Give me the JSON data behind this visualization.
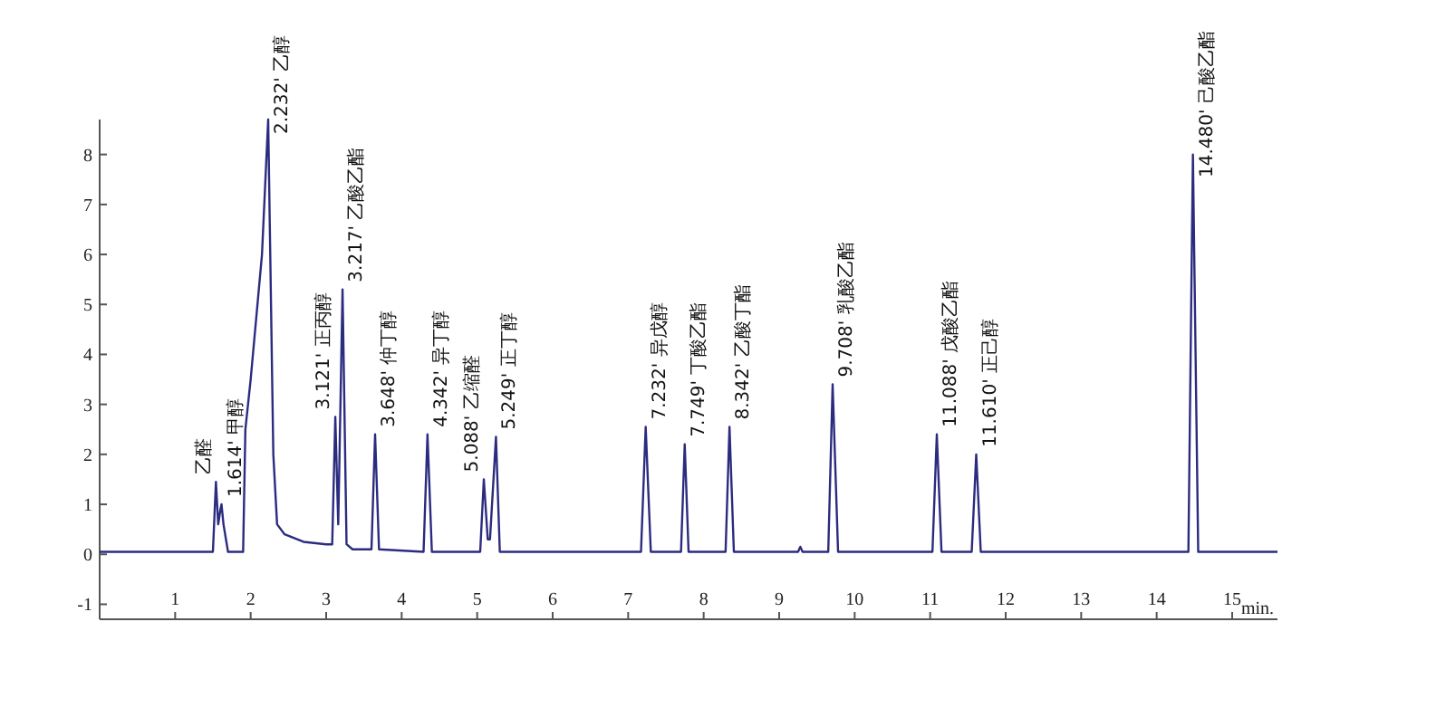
{
  "chart_data": {
    "type": "line",
    "xlabel": "min.",
    "xlim": [
      0,
      15.6
    ],
    "ylim": [
      -1.3,
      8.7
    ],
    "xticks": [
      1,
      2,
      3,
      4,
      5,
      6,
      7,
      8,
      9,
      10,
      11,
      12,
      13,
      14,
      15
    ],
    "yticks": [
      -1,
      0,
      1,
      2,
      3,
      4,
      5,
      6,
      7,
      8
    ],
    "grid": false,
    "marker": "none",
    "line_style": "solid",
    "series": [
      {
        "color": "#2b2b80",
        "x": [
          0.0,
          1.4,
          1.5,
          1.54,
          1.57,
          1.6,
          1.614,
          1.64,
          1.7,
          1.9,
          1.93,
          2.0,
          2.15,
          2.232,
          2.3,
          2.35,
          2.45,
          2.7,
          3.0,
          3.08,
          3.121,
          3.16,
          3.217,
          3.27,
          3.35,
          3.6,
          3.648,
          3.7,
          4.29,
          4.342,
          4.4,
          5.04,
          5.088,
          5.14,
          5.17,
          5.249,
          5.3,
          7.17,
          7.232,
          7.3,
          7.7,
          7.749,
          7.8,
          8.29,
          8.342,
          8.4,
          9.25,
          9.28,
          9.31,
          9.65,
          9.708,
          9.78,
          11.03,
          11.088,
          11.15,
          11.55,
          11.61,
          11.67,
          14.42,
          14.48,
          14.55,
          15.6
        ],
        "values": [
          0.05,
          0.05,
          0.05,
          1.45,
          0.6,
          0.9,
          1.0,
          0.6,
          0.05,
          0.05,
          2.5,
          3.5,
          6.0,
          8.7,
          2.0,
          0.6,
          0.4,
          0.25,
          0.2,
          0.2,
          2.75,
          0.6,
          5.3,
          0.2,
          0.1,
          0.1,
          2.4,
          0.1,
          0.05,
          2.4,
          0.05,
          0.05,
          1.5,
          0.3,
          0.3,
          2.35,
          0.05,
          0.05,
          2.55,
          0.05,
          0.05,
          2.2,
          0.05,
          0.05,
          2.55,
          0.05,
          0.05,
          0.15,
          0.05,
          0.05,
          3.4,
          0.05,
          0.05,
          2.4,
          0.05,
          0.05,
          2.0,
          0.05,
          0.05,
          8.0,
          0.05,
          0.05
        ]
      }
    ],
    "annotations": [
      {
        "text": "乙醛",
        "x": 1.54,
        "y": 1.45
      },
      {
        "text": "1.614' 甲醇",
        "x": 1.614,
        "y": 1.0
      },
      {
        "text": "2.232' 乙醇",
        "x": 2.232,
        "y": 8.7
      },
      {
        "text": "3.121' 正丙醇",
        "x": 3.121,
        "y": 2.75
      },
      {
        "text": "3.217' 乙酸乙酯",
        "x": 3.217,
        "y": 5.3
      },
      {
        "text": "3.648' 仲丁醇",
        "x": 3.648,
        "y": 2.4
      },
      {
        "text": "4.342' 异丁醇",
        "x": 4.342,
        "y": 2.4
      },
      {
        "text": "5.088' 乙缩醛",
        "x": 5.088,
        "y": 1.5
      },
      {
        "text": "5.249' 正丁醇",
        "x": 5.249,
        "y": 2.35
      },
      {
        "text": "7.232' 异戊醇",
        "x": 7.232,
        "y": 2.55
      },
      {
        "text": "7.749' 丁酸乙酯",
        "x": 7.749,
        "y": 2.2
      },
      {
        "text": "8.342' 乙酸丁酯",
        "x": 8.342,
        "y": 2.55
      },
      {
        "text": "9.708' 乳酸乙酯",
        "x": 9.708,
        "y": 3.4
      },
      {
        "text": "11.088' 戊酸乙酯",
        "x": 11.088,
        "y": 2.4
      },
      {
        "text": "11.610' 正己醇",
        "x": 11.61,
        "y": 2.0
      },
      {
        "text": "14.480' 己酸乙酯",
        "x": 14.48,
        "y": 8.0
      }
    ]
  }
}
